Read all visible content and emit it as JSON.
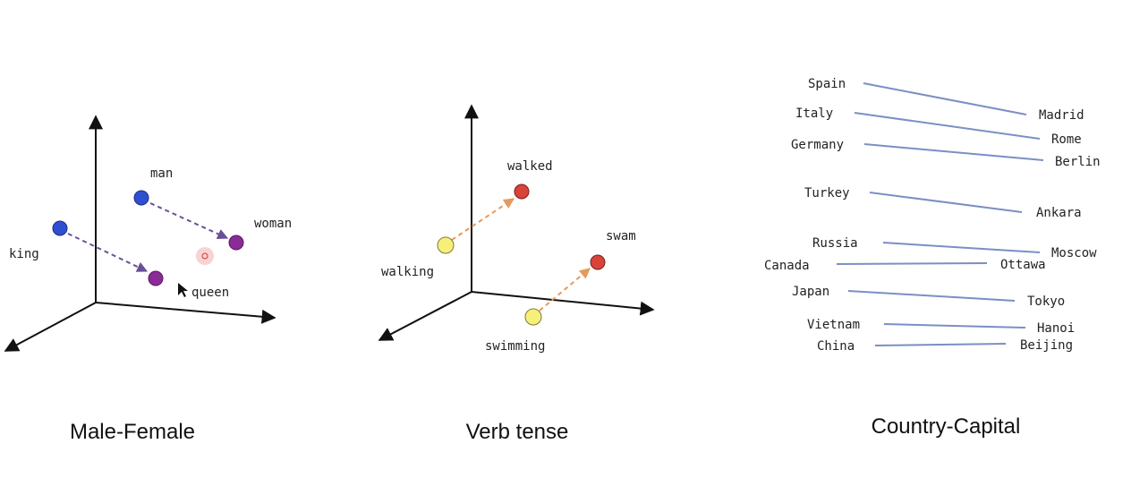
{
  "panels": {
    "male_female": {
      "caption": "Male-Female",
      "words": {
        "man": "man",
        "woman": "woman",
        "king": "king",
        "queen": "queen"
      }
    },
    "verb_tense": {
      "caption": "Verb tense",
      "words": {
        "walked": "walked",
        "walking": "walking",
        "swam": "swam",
        "swimming": "swimming"
      }
    },
    "country_capital": {
      "caption": "Country-Capital",
      "countries": [
        "Spain",
        "Italy",
        "Germany",
        "Turkey",
        "Russia",
        "Canada",
        "Japan",
        "Vietnam",
        "China"
      ],
      "capitals": [
        "Madrid",
        "Rome",
        "Berlin",
        "Ankara",
        "Moscow",
        "Ottawa",
        "Tokyo",
        "Hanoi",
        "Beijing"
      ]
    }
  },
  "colors": {
    "male_point": "#2f4fd0",
    "female_point": "#8a2b96",
    "gender_arrow": "#6a4f96",
    "present_point": "#f6ef7a",
    "past_point": "#d9433a",
    "tense_arrow": "#e59a5c",
    "pair_line": "#7b8fc4"
  }
}
